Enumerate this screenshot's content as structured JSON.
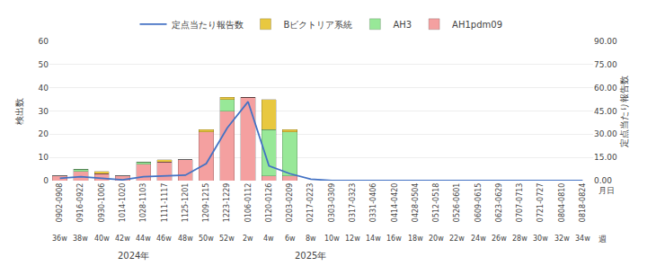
{
  "chart_data": {
    "type": "bar",
    "stacked": true,
    "categories": [
      "0902-0908",
      "0916-0922",
      "0930-1006",
      "1014-1020",
      "1028-1103",
      "1111-1117",
      "1125-1201",
      "1209-1215",
      "1223-1229",
      "0106-0112",
      "0120-0126",
      "0203-0209",
      "0217-0223",
      "0303-0309",
      "0317-0323",
      "0331-0406",
      "0414-0420",
      "0428-0504",
      "0512-0518",
      "0526-0601",
      "0609-0615",
      "0623-0629",
      "0707-0713",
      "0721-0727",
      "0804-0810",
      "0818-0824"
    ],
    "series": [
      {
        "name": "AH1pdm09",
        "type": "bar",
        "color": "#F4A0A0",
        "values": [
          2,
          4,
          3,
          2,
          7,
          8,
          9,
          21,
          30,
          36,
          2,
          2,
          0,
          0,
          0,
          0,
          0,
          0,
          0,
          0,
          0,
          0,
          0,
          0,
          0,
          0
        ]
      },
      {
        "name": "AH3",
        "type": "bar",
        "color": "#98E898",
        "values": [
          0,
          1,
          0,
          0,
          1,
          0,
          0,
          0,
          5,
          0,
          20,
          19,
          0,
          0,
          0,
          0,
          0,
          0,
          0,
          0,
          0,
          0,
          0,
          0,
          0,
          0
        ]
      },
      {
        "name": "Bビクトリア系統",
        "type": "bar",
        "color": "#E8C840",
        "values": [
          0,
          0,
          1,
          0,
          0,
          1,
          0,
          1,
          1,
          0,
          13,
          1,
          0,
          0,
          0,
          0,
          0,
          0,
          0,
          0,
          0,
          0,
          0,
          0,
          0,
          0
        ]
      },
      {
        "name": "定点当たり報告数",
        "type": "line",
        "axis": "y2",
        "color": "#4472C4",
        "values": [
          1.5,
          2.5,
          1.5,
          0.5,
          2.5,
          3.0,
          3.5,
          11.0,
          34.0,
          51.0,
          9.5,
          4.5,
          1.0,
          0.0,
          0.0,
          0.0,
          0.0,
          0.0,
          0.0,
          0.0,
          0.0,
          0.0,
          0.0,
          0.0,
          0.0,
          0.0
        ]
      }
    ],
    "ylabel": "検出数",
    "y2label": "定点当たり報告数",
    "ylim": [
      0,
      60
    ],
    "yticks": [
      0,
      10,
      20,
      30,
      40,
      50,
      60
    ],
    "y2lim": [
      0,
      90
    ],
    "y2ticks": [
      {
        "value": 0,
        "label": "0.00"
      },
      {
        "value": 15,
        "label": "15.00"
      },
      {
        "value": 30,
        "label": "30.00"
      },
      {
        "value": 45,
        "label": "45.00"
      },
      {
        "value": 60,
        "label": "60.00"
      },
      {
        "value": 75,
        "label": "75.00"
      },
      {
        "value": 90,
        "label": "90.00"
      }
    ],
    "grid": true,
    "legend": "top",
    "annotations": [
      {
        "text": "36w",
        "x": "0902-0908"
      },
      {
        "text": "38w",
        "x": "0916-0922"
      },
      {
        "text": "40w",
        "x": "0930-1006"
      },
      {
        "text": "42w",
        "x": "1014-1020"
      },
      {
        "text": "44w",
        "x": "1028-1103"
      },
      {
        "text": "46w",
        "x": "1111-1117"
      },
      {
        "text": "48w",
        "x": "1125-1201"
      },
      {
        "text": "50w",
        "x": "1209-1215"
      },
      {
        "text": "52w",
        "x": "1223-1229"
      },
      {
        "text": "2w",
        "x": "0106-0112"
      },
      {
        "text": "4w",
        "x": "0120-0126"
      },
      {
        "text": "6w",
        "x": "0203-0209"
      },
      {
        "text": "8w",
        "x": "0217-0223"
      },
      {
        "text": "10w",
        "x": "0303-0309"
      },
      {
        "text": "12w",
        "x": "0317-0323"
      },
      {
        "text": "14w",
        "x": "0331-0406"
      },
      {
        "text": "16w",
        "x": "0414-0420"
      },
      {
        "text": "18w",
        "x": "0428-0504"
      },
      {
        "text": "20w",
        "x": "0512-0518"
      },
      {
        "text": "22w",
        "x": "0526-0601"
      },
      {
        "text": "24w",
        "x": "0609-0615"
      },
      {
        "text": "26w",
        "x": "0623-0629"
      },
      {
        "text": "28w",
        "x": "0707-0713"
      },
      {
        "text": "30w",
        "x": "0721-0727"
      },
      {
        "text": "32w",
        "x": "0804-0810"
      },
      {
        "text": "34w",
        "x": "0818-0824"
      }
    ],
    "row_labels": [
      "月日",
      "週"
    ],
    "year_labels": [
      {
        "text": "2024年",
        "from": "0902-0908",
        "to": "1209-1215"
      },
      {
        "text": "2025年",
        "from": "1223-1229",
        "to": "0414-0420"
      }
    ]
  }
}
